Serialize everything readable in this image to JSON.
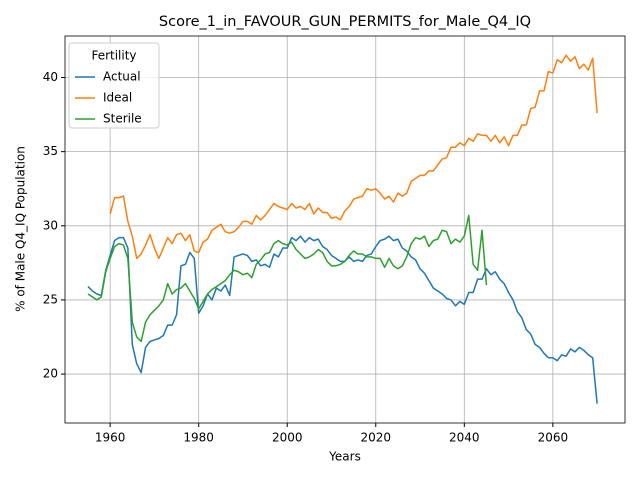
{
  "chart_data": {
    "type": "line",
    "title": "Score_1_in_FAVOUR_GUN_PERMITS_for_Male_Q4_IQ",
    "xlabel": "Years",
    "ylabel": "% of Male Q4_IQ Population",
    "legend_title": "Fertility",
    "legend": "upper left",
    "grid": true,
    "xlim": [
      1949.8,
      2076.3
    ],
    "ylim": [
      16.7,
      42.8
    ],
    "xticks": [
      1960,
      1980,
      2000,
      2020,
      2040,
      2060
    ],
    "yticks": [
      20,
      25,
      30,
      35,
      40
    ],
    "x": [
      1955,
      1956,
      1957,
      1958,
      1959,
      1960,
      1961,
      1962,
      1963,
      1964,
      1965,
      1966,
      1967,
      1968,
      1969,
      1970,
      1971,
      1972,
      1973,
      1974,
      1975,
      1976,
      1977,
      1978,
      1979,
      1980,
      1981,
      1982,
      1983,
      1984,
      1985,
      1986,
      1987,
      1988,
      1989,
      1990,
      1991,
      1992,
      1993,
      1994,
      1995,
      1996,
      1997,
      1998,
      1999,
      2000,
      2001,
      2002,
      2003,
      2004,
      2005,
      2006,
      2007,
      2008,
      2009,
      2010,
      2011,
      2012,
      2013,
      2014,
      2015,
      2016,
      2017,
      2018,
      2019,
      2020,
      2021,
      2022,
      2023,
      2024,
      2025,
      2026,
      2027,
      2028,
      2029,
      2030,
      2031,
      2032,
      2033,
      2034,
      2035,
      2036,
      2037,
      2038,
      2039,
      2040,
      2041,
      2042,
      2043,
      2044,
      2045,
      2046,
      2047,
      2048,
      2049,
      2050,
      2051,
      2052,
      2053,
      2054,
      2055,
      2056,
      2057,
      2058,
      2059,
      2060,
      2061,
      2062,
      2063,
      2064,
      2065,
      2066,
      2067,
      2068,
      2069,
      2070
    ],
    "series": [
      {
        "name": "Actual",
        "color": "#1f77b4",
        "values": [
          25.9,
          25.6,
          25.4,
          25.3,
          27.0,
          28.0,
          29.0,
          29.2,
          29.2,
          28.5,
          22.0,
          20.7,
          20.1,
          21.8,
          22.2,
          22.3,
          22.4,
          22.6,
          23.3,
          23.3,
          24.0,
          27.3,
          27.4,
          28.2,
          27.8,
          24.1,
          24.6,
          25.4,
          25.0,
          25.8,
          25.6,
          26.0,
          25.3,
          27.9,
          28.0,
          28.1,
          28.0,
          27.6,
          27.7,
          27.3,
          27.4,
          27.2,
          28.1,
          27.9,
          28.5,
          28.5,
          29.2,
          29.0,
          29.3,
          28.9,
          29.2,
          29.0,
          29.1,
          28.6,
          28.4,
          28.0,
          27.8,
          27.6,
          27.6,
          27.9,
          27.6,
          27.7,
          27.6,
          28.0,
          28.1,
          28.6,
          29.0,
          29.1,
          29.3,
          29.0,
          29.1,
          28.5,
          28.3,
          27.9,
          27.7,
          27.1,
          26.8,
          26.3,
          25.8,
          25.6,
          25.4,
          25.1,
          25.0,
          24.6,
          24.9,
          24.7,
          25.5,
          25.5,
          26.4,
          26.4,
          27.1,
          26.7,
          26.9,
          26.4,
          26.1,
          25.5,
          25.0,
          24.2,
          23.8,
          23.0,
          22.7,
          22.0,
          21.8,
          21.4,
          21.1,
          21.1,
          20.9,
          21.3,
          21.2,
          21.7,
          21.5,
          21.8,
          21.6,
          21.3,
          21.1,
          18.0
        ]
      },
      {
        "name": "Ideal",
        "color": "#ff7f0e",
        "values": [
          null,
          null,
          null,
          null,
          null,
          30.8,
          31.9,
          31.9,
          32.0,
          30.3,
          29.3,
          27.8,
          28.1,
          28.7,
          29.4,
          28.5,
          27.8,
          28.5,
          29.2,
          28.8,
          29.4,
          29.5,
          29.0,
          29.4,
          28.3,
          28.2,
          28.9,
          29.1,
          29.7,
          29.9,
          30.1,
          29.6,
          29.5,
          29.6,
          29.9,
          30.3,
          30.3,
          30.1,
          30.7,
          30.4,
          30.7,
          31.1,
          31.5,
          31.3,
          31.2,
          31.1,
          31.5,
          31.2,
          31.3,
          31.1,
          31.5,
          30.8,
          31.2,
          30.9,
          30.9,
          30.5,
          30.6,
          30.4,
          31.0,
          31.3,
          31.8,
          31.9,
          32.0,
          32.5,
          32.4,
          32.5,
          32.2,
          31.8,
          32.0,
          31.6,
          32.2,
          32.0,
          32.2,
          33.0,
          33.2,
          33.4,
          33.4,
          33.7,
          33.7,
          34.1,
          34.5,
          34.6,
          35.3,
          35.3,
          35.6,
          35.4,
          35.9,
          35.7,
          36.2,
          36.1,
          36.1,
          35.7,
          36.1,
          35.6,
          36.0,
          35.4,
          36.1,
          36.1,
          36.8,
          36.8,
          37.9,
          38.0,
          39.1,
          39.1,
          40.4,
          40.3,
          41.2,
          41.0,
          41.5,
          41.1,
          41.4,
          40.6,
          40.9,
          40.5,
          41.3,
          37.6
        ]
      },
      {
        "name": "Sterile",
        "color": "#2ca02c",
        "values": [
          25.4,
          25.2,
          25.0,
          25.2,
          26.9,
          27.8,
          28.6,
          28.8,
          28.7,
          27.8,
          23.5,
          22.5,
          22.2,
          23.5,
          24.0,
          24.3,
          24.6,
          25.0,
          26.1,
          25.4,
          25.7,
          25.8,
          26.1,
          25.6,
          25.1,
          24.4,
          24.9,
          25.4,
          25.7,
          25.9,
          26.1,
          26.3,
          26.7,
          27.0,
          26.9,
          26.7,
          26.8,
          26.5,
          27.4,
          27.7,
          28.1,
          28.2,
          28.8,
          29.0,
          28.8,
          28.7,
          28.9,
          28.4,
          28.1,
          27.8,
          27.9,
          28.1,
          28.4,
          28.2,
          27.6,
          27.3,
          27.3,
          27.4,
          27.6,
          28.0,
          28.3,
          28.1,
          28.1,
          27.9,
          27.9,
          27.8,
          27.8,
          27.2,
          27.8,
          27.3,
          27.1,
          27.3,
          27.9,
          28.8,
          29.2,
          29.1,
          29.3,
          28.6,
          29.0,
          29.1,
          29.7,
          29.6,
          28.8,
          29.1,
          28.9,
          29.3,
          30.7,
          27.4,
          27.0,
          29.7,
          26.0,
          null,
          null,
          null,
          null,
          null,
          null,
          null,
          null,
          null,
          null,
          null,
          null,
          null,
          null,
          null,
          null,
          null,
          null,
          null,
          null,
          null,
          null,
          null,
          null,
          null
        ]
      }
    ]
  }
}
